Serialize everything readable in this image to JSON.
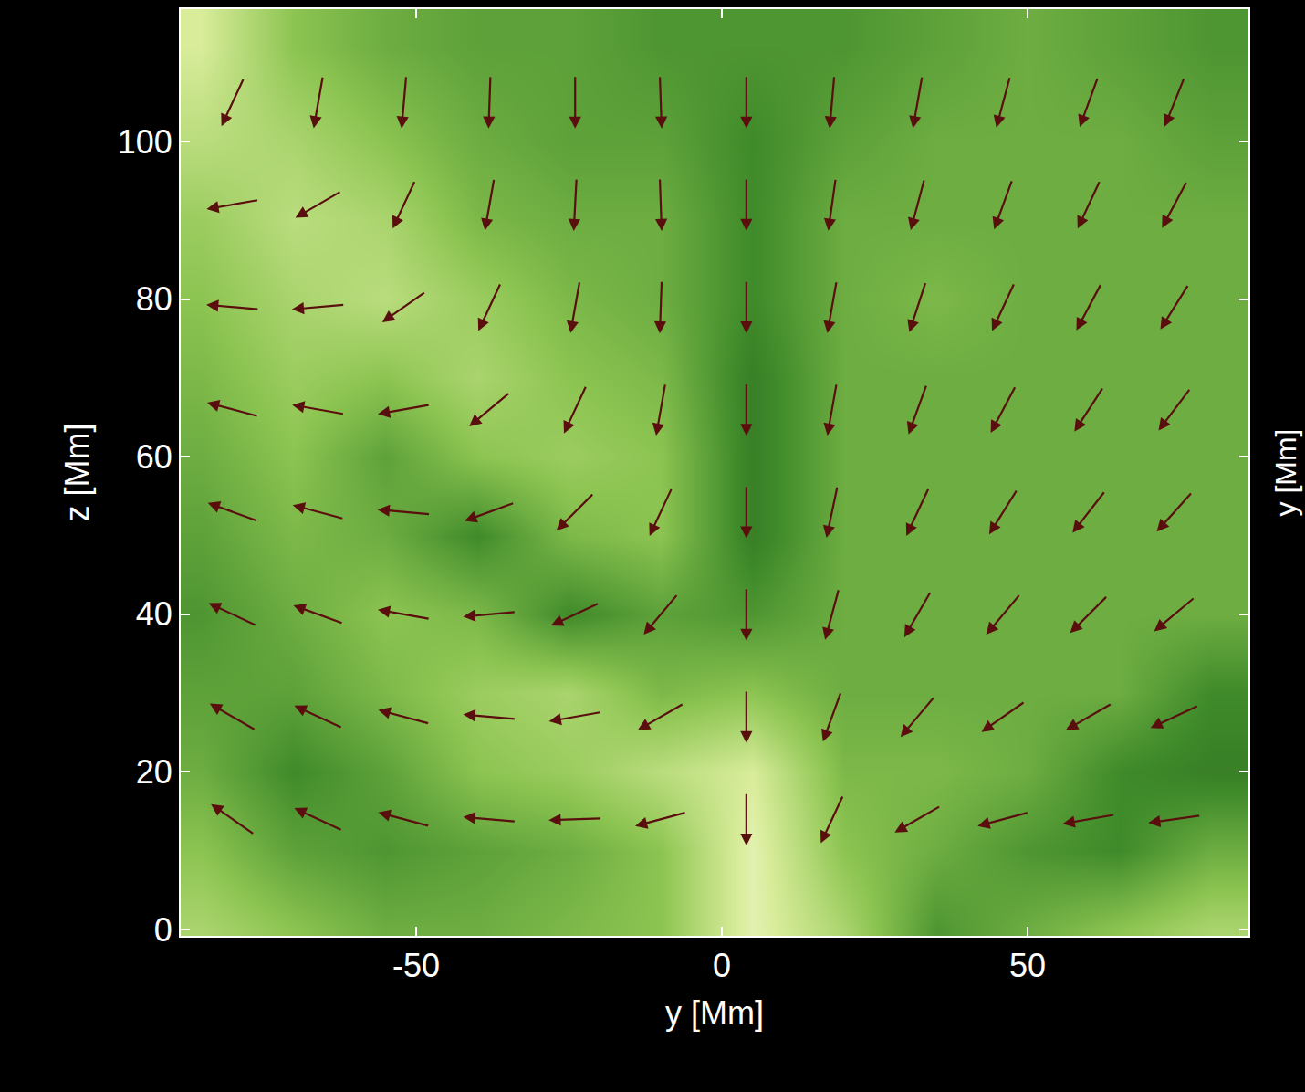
{
  "chart_data": {
    "type": "vector_field",
    "x_label": "y [Mm]",
    "y_label": "z [Mm]",
    "right_label": "y [Mm]",
    "xlim": [
      -88.5,
      86.1
    ],
    "ylim": [
      -0.8,
      116.8
    ],
    "xticks": [
      -50,
      0,
      50
    ],
    "yticks": [
      0,
      20,
      40,
      60,
      80,
      100
    ],
    "color": "#5a0e0e",
    "cells": {
      "x": [
        -85,
        -70,
        -55,
        -40,
        -25,
        -10,
        5,
        20,
        35,
        50,
        65,
        80
      ],
      "y": [
        0,
        10,
        20,
        30,
        40,
        50,
        60,
        70,
        80,
        90,
        100,
        112
      ],
      "zlim": [
        0,
        1
      ],
      "values": [
        [
          0.7,
          0.6,
          0.5,
          0.5,
          0.55,
          0.6,
          0.9,
          0.7,
          0.4,
          0.5,
          0.6,
          0.7
        ],
        [
          0.6,
          0.45,
          0.4,
          0.45,
          0.5,
          0.6,
          0.9,
          0.6,
          0.5,
          0.4,
          0.35,
          0.5
        ],
        [
          0.5,
          0.35,
          0.45,
          0.6,
          0.65,
          0.75,
          0.85,
          0.55,
          0.55,
          0.5,
          0.35,
          0.3
        ],
        [
          0.45,
          0.45,
          0.55,
          0.65,
          0.7,
          0.55,
          0.6,
          0.5,
          0.5,
          0.5,
          0.5,
          0.35
        ],
        [
          0.4,
          0.5,
          0.6,
          0.55,
          0.35,
          0.45,
          0.4,
          0.5,
          0.5,
          0.5,
          0.5,
          0.5
        ],
        [
          0.45,
          0.55,
          0.5,
          0.35,
          0.55,
          0.6,
          0.3,
          0.5,
          0.5,
          0.5,
          0.5,
          0.5
        ],
        [
          0.5,
          0.6,
          0.45,
          0.6,
          0.65,
          0.6,
          0.3,
          0.5,
          0.5,
          0.5,
          0.5,
          0.5
        ],
        [
          0.55,
          0.65,
          0.6,
          0.7,
          0.6,
          0.55,
          0.3,
          0.5,
          0.5,
          0.5,
          0.5,
          0.5
        ],
        [
          0.6,
          0.7,
          0.75,
          0.65,
          0.55,
          0.5,
          0.35,
          0.5,
          0.55,
          0.5,
          0.5,
          0.5
        ],
        [
          0.65,
          0.75,
          0.7,
          0.55,
          0.5,
          0.5,
          0.35,
          0.5,
          0.5,
          0.5,
          0.5,
          0.5
        ],
        [
          0.75,
          0.7,
          0.6,
          0.5,
          0.45,
          0.45,
          0.35,
          0.45,
          0.5,
          0.5,
          0.5,
          0.45
        ],
        [
          0.85,
          0.6,
          0.5,
          0.45,
          0.45,
          0.4,
          0.4,
          0.4,
          0.45,
          0.5,
          0.45,
          0.4
        ]
      ]
    },
    "vectors": {
      "x": [
        -80,
        -66,
        -52,
        -38,
        -24,
        -10,
        4,
        18,
        32,
        46,
        60,
        74
      ],
      "y": [
        105,
        92,
        79,
        66,
        53,
        40,
        27,
        14
      ],
      "angles": [
        [
          -115,
          -100,
          -95,
          -92,
          -90,
          -88,
          -90,
          -95,
          -100,
          -105,
          -110,
          -112
        ],
        [
          -170,
          -150,
          -115,
          -100,
          -93,
          -88,
          -90,
          -98,
          -105,
          -110,
          -115,
          -118
        ],
        [
          175,
          -175,
          -145,
          -115,
          -100,
          -92,
          -90,
          -100,
          -108,
          -115,
          -118,
          -122
        ],
        [
          165,
          170,
          -170,
          -140,
          -115,
          -100,
          -90,
          -100,
          -110,
          -118,
          -123,
          -127
        ],
        [
          160,
          165,
          175,
          -160,
          -135,
          -115,
          -90,
          -102,
          -115,
          -122,
          -128,
          -132
        ],
        [
          155,
          160,
          170,
          -175,
          -155,
          -130,
          -90,
          -105,
          -120,
          -130,
          -135,
          -140
        ],
        [
          150,
          155,
          165,
          175,
          -170,
          -150,
          -90,
          -110,
          -130,
          -145,
          -150,
          -155
        ],
        [
          145,
          155,
          165,
          175,
          -178,
          -165,
          -90,
          -115,
          -150,
          -165,
          -170,
          -172
        ]
      ]
    }
  }
}
